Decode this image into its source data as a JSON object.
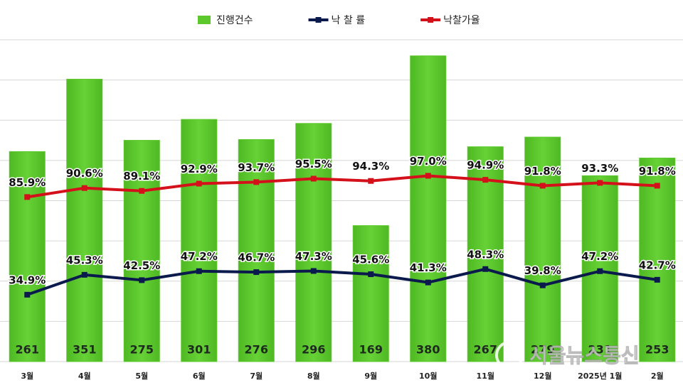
{
  "chart_data": {
    "type": "bar",
    "categories": [
      "3월",
      "4월",
      "5월",
      "6월",
      "7월",
      "8월",
      "9월",
      "10월",
      "11월",
      "12월",
      "2025년 1월",
      "2월"
    ],
    "series": [
      {
        "name": "진행건수",
        "type": "bar",
        "color": "#5cc82c",
        "values": [
          261,
          351,
          275,
          301,
          276,
          296,
          169,
          380,
          267,
          279,
          231,
          253
        ]
      },
      {
        "name": "낙 찰 률",
        "type": "line",
        "axis": "y2",
        "color": "#0b1a4d",
        "values": [
          34.9,
          45.3,
          42.5,
          47.2,
          46.7,
          47.3,
          45.6,
          41.3,
          48.3,
          39.8,
          47.2,
          42.7
        ],
        "value_labels": [
          "34.9%",
          "45.3%",
          "42.5%",
          "47.2%",
          "46.7%",
          "47.3%",
          "45.6%",
          "41.3%",
          "48.3%",
          "39.8%",
          "47.2%",
          "42.7%"
        ]
      },
      {
        "name": "낙찰가율",
        "type": "line",
        "axis": "y2",
        "color": "#d4111a",
        "values": [
          85.9,
          90.6,
          89.1,
          92.9,
          93.7,
          95.5,
          94.3,
          97.0,
          94.9,
          91.8,
          93.3,
          91.8
        ],
        "value_labels": [
          "85.9%",
          "90.6%",
          "89.1%",
          "92.9%",
          "93.7%",
          "95.5%",
          "94.3%",
          "97.0%",
          "94.9%",
          "91.8%",
          "93.3%",
          "91.8%"
        ]
      }
    ],
    "ylim": [
      0,
      400
    ],
    "yticks": [
      0,
      50,
      100,
      150,
      200,
      250,
      300,
      350,
      400
    ],
    "y2lim": [
      0,
      168
    ],
    "grid": true,
    "legend": "top",
    "watermark": "서울뉴스통신"
  }
}
